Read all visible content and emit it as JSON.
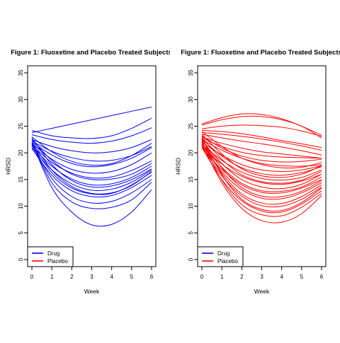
{
  "chart_data": [
    {
      "type": "line",
      "title": "Figure 1: Fluoxetine and Placebo Treated Subjects",
      "xlabel": "Week",
      "ylabel": "HRSD",
      "xlim": [
        0,
        6
      ],
      "ylim": [
        0,
        35
      ],
      "xticks": [
        "0",
        "1",
        "2",
        "3",
        "4",
        "5",
        "6"
      ],
      "yticks": [
        "0",
        "5",
        "10",
        "15",
        "20",
        "25",
        "30",
        "35"
      ],
      "grid": false,
      "legend_position": "bottom-left",
      "legend": [
        {
          "label": "Drug",
          "color": "#0000ff"
        },
        {
          "label": "Placebo",
          "color": "#ff0000"
        }
      ],
      "series_color": "#0000ff",
      "x": [
        0,
        1,
        2,
        3,
        4,
        5,
        6
      ],
      "series": [
        {
          "values": [
            23.8,
            24.6,
            25.4,
            26.2,
            27.0,
            27.8,
            28.6
          ]
        },
        {
          "values": [
            24.2,
            23.2,
            22.8,
            22.7,
            23.2,
            24.6,
            26.5
          ]
        },
        {
          "values": [
            23.4,
            22.5,
            22.0,
            21.8,
            22.2,
            23.2,
            24.7
          ]
        },
        {
          "values": [
            22.5,
            21.2,
            20.4,
            20.0,
            20.2,
            21.0,
            22.5
          ]
        },
        {
          "values": [
            22.2,
            20.3,
            19.1,
            18.5,
            18.6,
            19.5,
            21.2
          ]
        },
        {
          "values": [
            23.0,
            20.2,
            18.4,
            17.7,
            18.0,
            19.5,
            21.8
          ]
        },
        {
          "values": [
            22.0,
            19.6,
            18.0,
            17.4,
            17.8,
            19.0,
            21.0
          ]
        },
        {
          "values": [
            21.8,
            18.8,
            16.9,
            16.2,
            16.5,
            17.8,
            20.0
          ]
        },
        {
          "values": [
            21.5,
            18.2,
            16.2,
            15.3,
            15.5,
            16.7,
            18.5
          ]
        },
        {
          "values": [
            22.5,
            18.6,
            16.0,
            15.0,
            15.1,
            16.0,
            18.0
          ]
        },
        {
          "values": [
            21.3,
            17.5,
            15.1,
            14.0,
            14.2,
            15.4,
            17.5
          ]
        },
        {
          "values": [
            22.8,
            17.8,
            14.8,
            13.6,
            13.8,
            15.0,
            17.0
          ]
        },
        {
          "values": [
            21.0,
            16.8,
            14.2,
            13.0,
            13.2,
            14.5,
            16.8
          ]
        },
        {
          "values": [
            22.0,
            16.8,
            13.7,
            12.4,
            12.5,
            13.9,
            16.5
          ]
        },
        {
          "values": [
            21.5,
            16.3,
            13.4,
            12.3,
            12.4,
            14.0,
            16.4
          ]
        },
        {
          "values": [
            20.8,
            15.8,
            12.9,
            11.8,
            12.0,
            13.5,
            15.8
          ]
        },
        {
          "values": [
            21.6,
            15.2,
            11.8,
            10.6,
            10.9,
            12.5,
            15.0
          ]
        },
        {
          "values": [
            21.8,
            14.4,
            10.8,
            9.6,
            9.8,
            11.2,
            14.5
          ]
        },
        {
          "values": [
            22.0,
            13.5,
            8.9,
            6.5,
            6.6,
            8.9,
            13.1
          ]
        }
      ]
    },
    {
      "type": "line",
      "title": "Figure 1: Fluoxetine and Placebo Treated Subjects",
      "xlabel": "Week",
      "ylabel": "HRSD",
      "xlim": [
        0,
        6
      ],
      "ylim": [
        0,
        35
      ],
      "xticks": [
        "0",
        "1",
        "2",
        "3",
        "4",
        "5",
        "6"
      ],
      "yticks": [
        "0",
        "5",
        "10",
        "15",
        "20",
        "25",
        "30",
        "35"
      ],
      "grid": false,
      "legend_position": "bottom-left",
      "legend": [
        {
          "label": "Drug",
          "color": "#0000ff"
        },
        {
          "label": "Placebo",
          "color": "#ff0000"
        }
      ],
      "series_color": "#ff0000",
      "x": [
        0,
        1,
        2,
        3,
        4,
        5,
        6
      ],
      "series": [
        {
          "values": [
            25.4,
            26.6,
            27.3,
            27.2,
            26.4,
            25.0,
            23.3
          ]
        },
        {
          "values": [
            25.2,
            26.2,
            26.8,
            26.8,
            26.2,
            25.0,
            22.8
          ]
        },
        {
          "values": [
            24.5,
            25.0,
            25.2,
            25.1,
            24.8,
            24.1,
            23.1
          ]
        },
        {
          "values": [
            24.2,
            24.0,
            23.6,
            23.0,
            22.3,
            21.7,
            21.0
          ]
        },
        {
          "values": [
            23.8,
            23.5,
            23.1,
            22.6,
            22.0,
            21.3,
            20.5
          ]
        },
        {
          "values": [
            23.5,
            22.8,
            22.2,
            21.7,
            21.1,
            20.4,
            19.6
          ]
        },
        {
          "values": [
            23.0,
            21.8,
            20.9,
            20.2,
            19.8,
            19.4,
            19.0
          ]
        },
        {
          "values": [
            22.8,
            21.2,
            20.1,
            19.5,
            19.2,
            19.1,
            19.0
          ]
        },
        {
          "values": [
            23.2,
            20.9,
            19.4,
            18.6,
            18.3,
            18.4,
            18.8
          ]
        },
        {
          "values": [
            22.5,
            20.5,
            19.0,
            18.0,
            17.6,
            17.5,
            17.8
          ]
        },
        {
          "values": [
            24.0,
            21.2,
            19.0,
            17.8,
            17.2,
            17.3,
            18.2
          ]
        },
        {
          "values": [
            22.0,
            19.6,
            17.8,
            16.8,
            16.5,
            16.8,
            17.6
          ]
        },
        {
          "values": [
            22.6,
            19.4,
            17.2,
            16.1,
            15.8,
            16.3,
            17.4
          ]
        },
        {
          "values": [
            23.5,
            19.8,
            17.0,
            15.7,
            15.4,
            16.0,
            17.6
          ]
        },
        {
          "values": [
            21.6,
            18.6,
            16.4,
            15.2,
            14.9,
            15.4,
            16.8
          ]
        },
        {
          "values": [
            22.9,
            18.8,
            15.9,
            14.6,
            14.3,
            14.9,
            16.5
          ]
        },
        {
          "values": [
            21.2,
            17.9,
            15.6,
            14.4,
            14.1,
            14.7,
            16.0
          ]
        },
        {
          "values": [
            22.3,
            18.0,
            15.0,
            13.6,
            13.3,
            14.1,
            16.0
          ]
        },
        {
          "values": [
            21.8,
            17.3,
            14.3,
            12.9,
            12.8,
            13.6,
            15.5
          ]
        },
        {
          "values": [
            20.9,
            16.9,
            14.0,
            12.6,
            12.5,
            13.4,
            15.0
          ]
        },
        {
          "values": [
            22.5,
            17.2,
            13.5,
            11.9,
            11.8,
            12.8,
            14.8
          ]
        },
        {
          "values": [
            21.5,
            16.5,
            13.1,
            11.5,
            11.4,
            12.5,
            14.4
          ]
        },
        {
          "values": [
            22.0,
            16.2,
            12.3,
            10.6,
            10.5,
            11.8,
            14.0
          ]
        },
        {
          "values": [
            21.3,
            15.7,
            11.9,
            10.1,
            10.0,
            11.3,
            13.6
          ]
        },
        {
          "values": [
            22.8,
            15.9,
            11.3,
            9.4,
            9.2,
            10.7,
            13.4
          ]
        },
        {
          "values": [
            21.0,
            15.0,
            11.0,
            9.1,
            8.9,
            10.4,
            12.9
          ]
        },
        {
          "values": [
            22.2,
            14.9,
            10.3,
            8.4,
            8.2,
            9.8,
            12.4
          ]
        },
        {
          "values": [
            21.6,
            14.4,
            9.6,
            7.3,
            7.0,
            8.6,
            12.0
          ]
        }
      ]
    }
  ]
}
